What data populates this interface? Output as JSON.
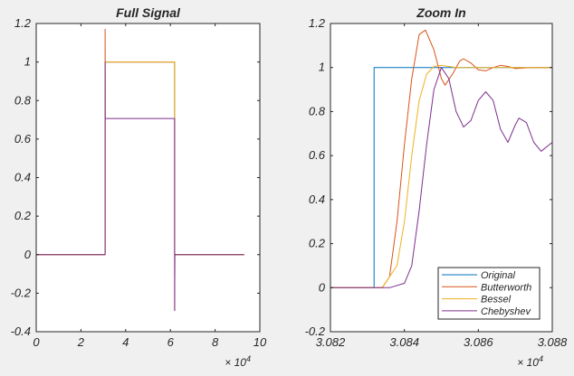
{
  "chart_data": [
    {
      "type": "line",
      "title": "Full Signal",
      "xlabel": "",
      "ylabel": "",
      "xlim": [
        0,
        10
      ],
      "ylim": [
        -0.4,
        1.2
      ],
      "x_exponent_label": "× 10^4",
      "xticks": [
        0,
        2,
        4,
        6,
        8,
        10
      ],
      "yticks": [
        -0.4,
        -0.2,
        0,
        0.2,
        0.4,
        0.6,
        0.8,
        1,
        1.2
      ],
      "series": [
        {
          "name": "Original",
          "color": "#0072BD",
          "x": [
            0,
            3.08,
            3.08,
            6.19,
            6.19,
            9.3
          ],
          "y": [
            0,
            0,
            1,
            1,
            0,
            0
          ]
        },
        {
          "name": "Butterworth",
          "color": "#D95319",
          "x": [
            0,
            3.08,
            3.08,
            3.085,
            3.09,
            6.19,
            6.19,
            6.2,
            6.21,
            9.3
          ],
          "y": [
            0,
            0,
            1.17,
            1.0,
            1.0,
            1.0,
            -0.29,
            0,
            0,
            0
          ]
        },
        {
          "name": "Bessel",
          "color": "#EDB120",
          "x": [
            0,
            3.08,
            3.08,
            6.19,
            6.19,
            9.3
          ],
          "y": [
            0,
            0,
            1,
            1,
            0,
            0
          ]
        },
        {
          "name": "Chebyshev",
          "color": "#7E2F8E",
          "x": [
            0,
            3.08,
            3.08,
            3.085,
            6.19,
            6.19,
            6.2,
            9.3
          ],
          "y": [
            0,
            0,
            1.0,
            0.707,
            0.707,
            -0.29,
            0,
            0
          ]
        }
      ]
    },
    {
      "type": "line",
      "title": "Zoom In",
      "xlabel": "",
      "ylabel": "",
      "xlim": [
        3.082,
        3.088
      ],
      "ylim": [
        -0.2,
        1.2
      ],
      "x_exponent_label": "× 10^4",
      "xticks": [
        3.082,
        3.084,
        3.086,
        3.088
      ],
      "xtick_labels": [
        "3.082",
        "3.084",
        "3.086",
        "3.088"
      ],
      "yticks": [
        -0.2,
        0,
        0.2,
        0.4,
        0.6,
        0.8,
        1,
        1.2
      ],
      "legend": {
        "placement": "bottom-right",
        "entries": [
          "Original",
          "Butterworth",
          "Bessel",
          "Chebyshev"
        ]
      },
      "series": [
        {
          "name": "Original",
          "color": "#0072BD",
          "x": [
            3.082,
            3.08318,
            3.08318,
            3.088
          ],
          "y": [
            0,
            0,
            1,
            1
          ]
        },
        {
          "name": "Butterworth",
          "color": "#D95319",
          "x": [
            3.082,
            3.0834,
            3.0836,
            3.0838,
            3.084,
            3.0842,
            3.0844,
            3.08457,
            3.0848,
            3.085,
            3.0851,
            3.0853,
            3.0855,
            3.0856,
            3.0858,
            3.086,
            3.0862,
            3.0864,
            3.0866,
            3.0868,
            3.087,
            3.0874,
            3.088
          ],
          "y": [
            0,
            0,
            0.05,
            0.3,
            0.65,
            0.95,
            1.15,
            1.17,
            1.08,
            0.95,
            0.92,
            0.97,
            1.03,
            1.04,
            1.02,
            0.99,
            0.985,
            1.0,
            1.01,
            1.005,
            0.995,
            1.0,
            1.0
          ]
        },
        {
          "name": "Bessel",
          "color": "#EDB120",
          "x": [
            3.082,
            3.0834,
            3.0838,
            3.084,
            3.0842,
            3.0844,
            3.0846,
            3.0848,
            3.085,
            3.0854,
            3.088
          ],
          "y": [
            0,
            0,
            0.1,
            0.3,
            0.6,
            0.85,
            0.97,
            1.005,
            1.01,
            1.0,
            1.0
          ]
        },
        {
          "name": "Chebyshev",
          "color": "#7E2F8E",
          "x": [
            3.082,
            3.0836,
            3.084,
            3.0842,
            3.0844,
            3.0846,
            3.0848,
            3.085,
            3.0852,
            3.0854,
            3.0856,
            3.0858,
            3.086,
            3.0862,
            3.0864,
            3.0866,
            3.0868,
            3.087,
            3.0871,
            3.0873,
            3.0875,
            3.0877,
            3.088
          ],
          "y": [
            0,
            0,
            0.02,
            0.1,
            0.35,
            0.65,
            0.9,
            1.0,
            0.95,
            0.8,
            0.73,
            0.76,
            0.85,
            0.89,
            0.85,
            0.72,
            0.66,
            0.74,
            0.77,
            0.75,
            0.66,
            0.62,
            0.66
          ]
        }
      ]
    }
  ]
}
